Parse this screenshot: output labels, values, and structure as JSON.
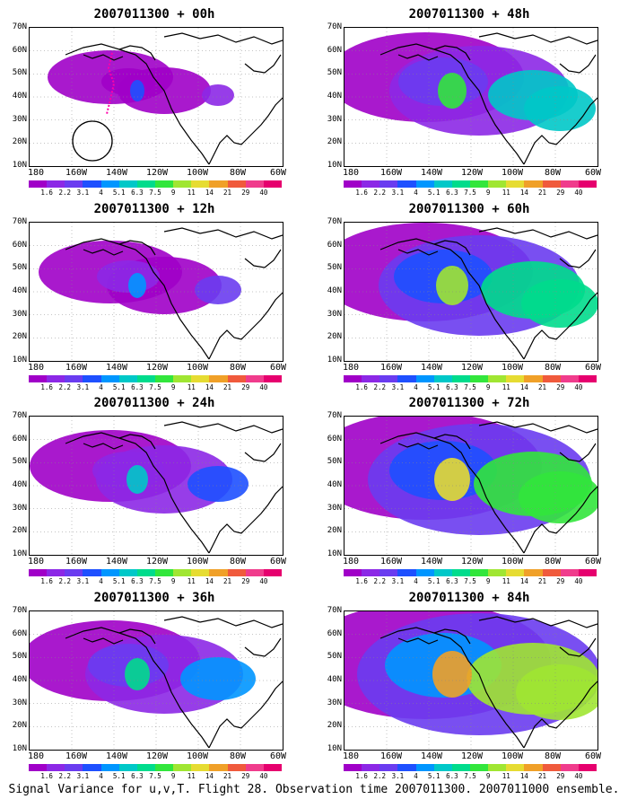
{
  "caption": "Signal Variance for u,v,T. Flight 28. Observation time 2007011300. 2007011000 ensemble.",
  "lat_labels": [
    "70N",
    "60N",
    "50N",
    "40N",
    "30N",
    "20N",
    "10N"
  ],
  "lon_labels": [
    "180",
    "160W",
    "140W",
    "120W",
    "100W",
    "80W",
    "60W"
  ],
  "colorbar": {
    "labels": [
      "1.6",
      "2.2",
      "3.1",
      "4",
      "5.1",
      "6.3",
      "7.5",
      "9",
      "11",
      "14",
      "21",
      "29",
      "40"
    ],
    "colors": [
      "#a000c8",
      "#8c28e6",
      "#6a3cf0",
      "#1e50ff",
      "#0096ff",
      "#00c8c8",
      "#00dc8c",
      "#32e63c",
      "#a0e632",
      "#e6dc32",
      "#f0a028",
      "#f05a3c",
      "#f03c8c",
      "#e6006e"
    ]
  },
  "panels": [
    {
      "id": "00h",
      "title": "2007011300 + 00h",
      "level": 1
    },
    {
      "id": "48h",
      "title": "2007011300 + 48h",
      "level": 5
    },
    {
      "id": "12h",
      "title": "2007011300 + 12h",
      "level": 2
    },
    {
      "id": "60h",
      "title": "2007011300 + 60h",
      "level": 6
    },
    {
      "id": "24h",
      "title": "2007011300 + 24h",
      "level": 3
    },
    {
      "id": "72h",
      "title": "2007011300 + 72h",
      "level": 7
    },
    {
      "id": "36h",
      "title": "2007011300 + 36h",
      "level": 4
    },
    {
      "id": "84h",
      "title": "2007011300 + 84h",
      "level": 8
    }
  ]
}
